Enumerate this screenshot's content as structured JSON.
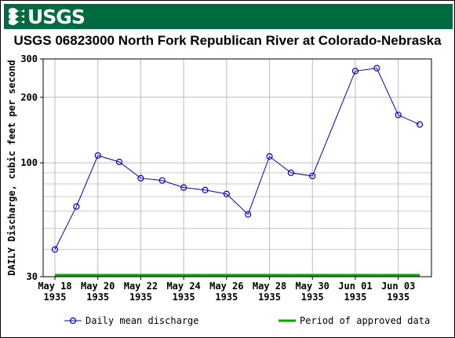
{
  "header": {
    "logo_text": "USGS",
    "logo_icon": "usgs-wave-icon"
  },
  "chart_data": {
    "type": "line",
    "title": "USGS 06823000 North Fork Republican River at Colorado-Nebraska",
    "ylabel": "DAILY Discharge, cubic feet per second",
    "xlabel": "",
    "yscale": "log",
    "ylim": [
      30,
      300
    ],
    "xlim": [
      "1935-05-18",
      "1935-06-04"
    ],
    "y_ticks": [
      {
        "value": 30,
        "label": "30"
      },
      {
        "value": 100,
        "label": "100"
      },
      {
        "value": 200,
        "label": "200"
      },
      {
        "value": 300,
        "label": "300"
      }
    ],
    "x_ticks": [
      {
        "date": "1935-05-18",
        "label1": "May 18",
        "label2": "1935"
      },
      {
        "date": "1935-05-20",
        "label1": "May 20",
        "label2": "1935"
      },
      {
        "date": "1935-05-22",
        "label1": "May 22",
        "label2": "1935"
      },
      {
        "date": "1935-05-24",
        "label1": "May 24",
        "label2": "1935"
      },
      {
        "date": "1935-05-26",
        "label1": "May 26",
        "label2": "1935"
      },
      {
        "date": "1935-05-28",
        "label1": "May 28",
        "label2": "1935"
      },
      {
        "date": "1935-05-30",
        "label1": "May 30",
        "label2": "1935"
      },
      {
        "date": "1935-06-01",
        "label1": "Jun 01",
        "label2": "1935"
      },
      {
        "date": "1935-06-03",
        "label1": "Jun 03",
        "label2": "1935"
      }
    ],
    "grid": true,
    "series": [
      {
        "name": "Daily mean discharge",
        "color": "#0000cc",
        "marker": "circle",
        "x": [
          "1935-05-18",
          "1935-05-19",
          "1935-05-20",
          "1935-05-21",
          "1935-05-22",
          "1935-05-23",
          "1935-05-24",
          "1935-05-25",
          "1935-05-26",
          "1935-05-27",
          "1935-05-28",
          "1935-05-29",
          "1935-05-30",
          "1935-06-01",
          "1935-06-02",
          "1935-06-03",
          "1935-06-04"
        ],
        "y": [
          40,
          63,
          108,
          101,
          85,
          83,
          77,
          75,
          72,
          58,
          107,
          90,
          87,
          264,
          272,
          166,
          150
        ]
      }
    ],
    "approved_period": {
      "name": "Period of approved data",
      "color": "#00aa00",
      "start": "1935-05-18",
      "end": "1935-06-04"
    },
    "legend": "bottom"
  }
}
